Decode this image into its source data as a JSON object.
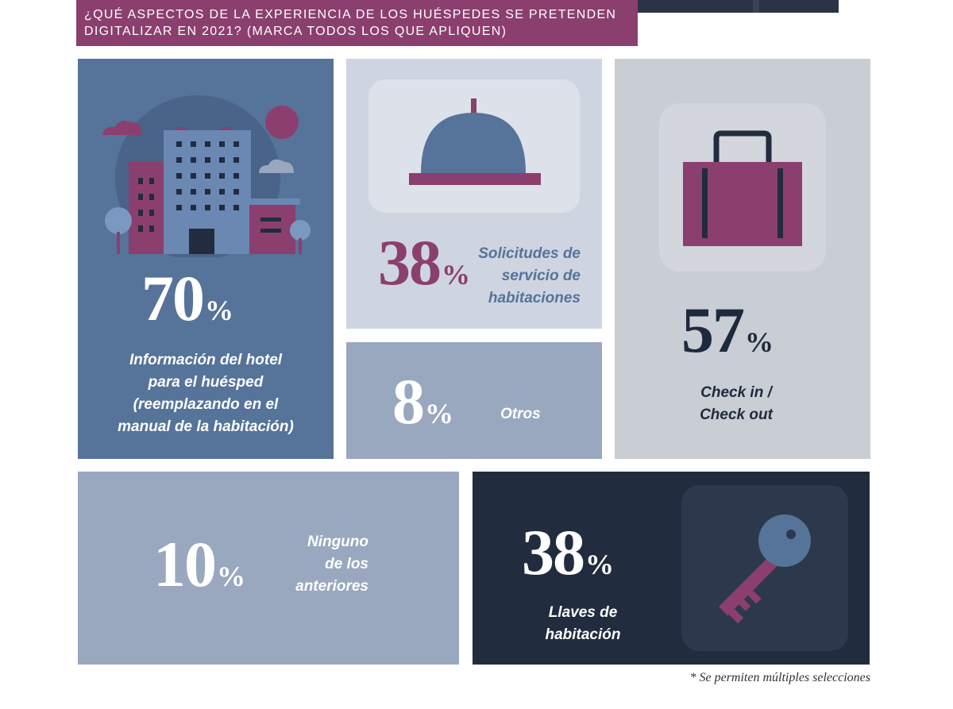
{
  "header": {
    "question_line1": "¿QUÉ ASPECTOS DE LA EXPERIENCIA DE LOS HUÉSPEDES SE PRETENDEN",
    "question_line2": "DIGITALIZAR EN 2021? (MARCA TODOS LOS QUE APLIQUEN)"
  },
  "colors": {
    "header_bg": "#8b3f6e",
    "blue": "#56739a",
    "light_blue_gray": "#cfd5e0",
    "gray_blue": "#99a8bf",
    "light_gray": "#c9cdd4",
    "navy": "#212c3e",
    "plum": "#8b3f6e"
  },
  "chart_data": {
    "type": "table",
    "categories": [
      "Información del hotel para el huésped (reemplazando en el manual de la habitación)",
      "Solicitudes de servicio de habitaciones",
      "Otros",
      "Check in / Check out",
      "Ninguno de los anteriores",
      "Llaves de habitación"
    ],
    "values": [
      70,
      38,
      8,
      57,
      10,
      38
    ],
    "unit": "%",
    "items": [
      {
        "value": "70",
        "unit": "%",
        "label_lines": [
          "Información del hotel",
          "para el huésped",
          "(reemplazando en el",
          "manual de la habitación)"
        ],
        "icon": "hotel-building-icon"
      },
      {
        "value": "38",
        "unit": "%",
        "label_lines": [
          "Solicitudes de",
          "servicio de",
          "habitaciones"
        ],
        "icon": "service-bell-icon"
      },
      {
        "value": "8",
        "unit": "%",
        "label_lines": [
          "Otros"
        ],
        "icon": ""
      },
      {
        "value": "57",
        "unit": "%",
        "label_lines": [
          "Check in /",
          "Check out"
        ],
        "icon": "suitcase-icon"
      },
      {
        "value": "10",
        "unit": "%",
        "label_lines": [
          "Ninguno",
          "de los",
          "anteriores"
        ],
        "icon": ""
      },
      {
        "value": "38",
        "unit": "%",
        "label_lines": [
          "Llaves de",
          "habitación"
        ],
        "icon": "room-key-icon"
      }
    ]
  },
  "footnote": "* Se permiten múltiples selecciones"
}
